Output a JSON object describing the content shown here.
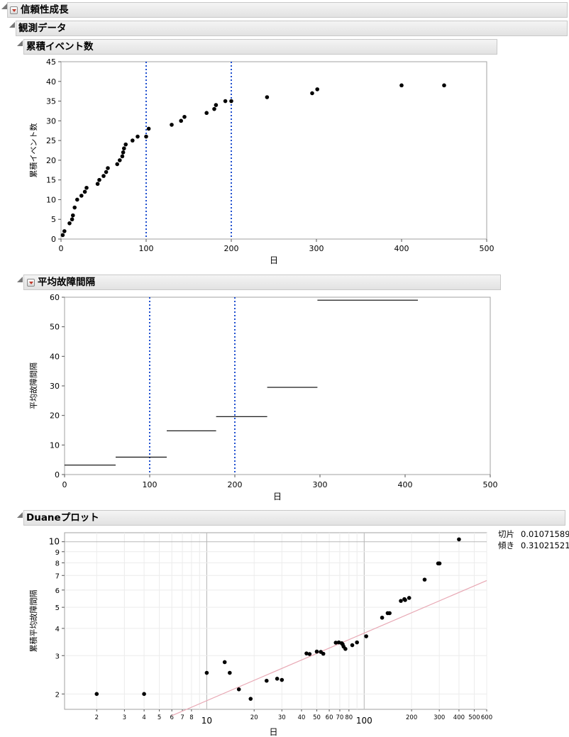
{
  "report": {
    "title": "信頼性成長",
    "observed": {
      "title": "観測データ"
    }
  },
  "panels": {
    "cumulative": {
      "title": "累積イベント数"
    },
    "mtbf": {
      "title": "平均故障間隔"
    },
    "duane": {
      "title": "Duaneプロット",
      "params": [
        {
          "label": "切片",
          "value": "0.01071589"
        },
        {
          "label": "傾き",
          "value": "0.31021521"
        }
      ]
    }
  },
  "colors": {
    "point": "#000000",
    "phase_line": "#1f4fcf",
    "fit_line": "#e8a8b4",
    "grid": "#d8d8d8"
  },
  "chart_data": [
    {
      "type": "scatter",
      "title": "累積イベント数",
      "xlabel": "日",
      "ylabel": "累積イベント数",
      "xlim": [
        0,
        500
      ],
      "ylim": [
        0,
        45
      ],
      "xticks": [
        0,
        100,
        200,
        300,
        400,
        500
      ],
      "yticks": [
        0,
        5,
        10,
        15,
        20,
        25,
        30,
        35,
        40,
        45
      ],
      "phase_lines": [
        100,
        200
      ],
      "points": [
        [
          2,
          1
        ],
        [
          4,
          2
        ],
        [
          10,
          4
        ],
        [
          13,
          5
        ],
        [
          14,
          6
        ],
        [
          16,
          8
        ],
        [
          19,
          10
        ],
        [
          24,
          11
        ],
        [
          28,
          12
        ],
        [
          30,
          13
        ],
        [
          43,
          14
        ],
        [
          45,
          15
        ],
        [
          50,
          16
        ],
        [
          53,
          17
        ],
        [
          55,
          18
        ],
        [
          66,
          19
        ],
        [
          69,
          20
        ],
        [
          72,
          21
        ],
        [
          73,
          22
        ],
        [
          74,
          23
        ],
        [
          76,
          24
        ],
        [
          84,
          25
        ],
        [
          90,
          26
        ],
        [
          100,
          26
        ],
        [
          103,
          28
        ],
        [
          130,
          29
        ],
        [
          141,
          30
        ],
        [
          145,
          31
        ],
        [
          171,
          32
        ],
        [
          180,
          33
        ],
        [
          182,
          34
        ],
        [
          193,
          35
        ],
        [
          200,
          35
        ],
        [
          242,
          36
        ],
        [
          295,
          37
        ],
        [
          301,
          38
        ],
        [
          400,
          39
        ],
        [
          450,
          39
        ]
      ]
    },
    {
      "type": "line",
      "title": "平均故障間隔",
      "xlabel": "日",
      "ylabel": "平均故障間隔",
      "xlim": [
        0,
        500
      ],
      "ylim": [
        0,
        60
      ],
      "xticks": [
        0,
        100,
        200,
        300,
        400,
        500
      ],
      "yticks": [
        0,
        10,
        20,
        30,
        40,
        50,
        60
      ],
      "phase_lines": [
        100,
        200
      ],
      "segments": [
        {
          "x0": 0,
          "x1": 60,
          "y": 3.2
        },
        {
          "x0": 60,
          "x1": 120,
          "y": 5.9
        },
        {
          "x0": 120,
          "x1": 178,
          "y": 14.8
        },
        {
          "x0": 178,
          "x1": 238,
          "y": 19.6
        },
        {
          "x0": 238,
          "x1": 297,
          "y": 29.5
        },
        {
          "x0": 297,
          "x1": 415,
          "y": 59
        }
      ]
    },
    {
      "type": "scatter",
      "title": "Duaneプロット",
      "xlabel": "日",
      "ylabel": "累積平均故障間隔",
      "xscale": "log",
      "yscale": "log",
      "xlim": [
        1.25,
        600
      ],
      "ylim": [
        1.7,
        11
      ],
      "xticks_labeled": [
        2,
        3,
        4,
        5,
        6,
        7,
        8,
        20,
        30,
        40,
        50,
        60,
        70,
        80,
        200,
        300,
        400,
        500,
        600
      ],
      "xticks_major": [
        10,
        100
      ],
      "yticks": [
        2,
        3,
        4,
        5,
        6,
        7,
        8,
        9,
        10
      ],
      "fit": {
        "intercept": 0.01071589,
        "slope": 0.31021521
      },
      "points": [
        [
          2,
          2.0
        ],
        [
          4,
          2.0
        ],
        [
          10,
          2.5
        ],
        [
          13,
          2.8
        ],
        [
          14,
          2.5
        ],
        [
          16,
          2.1
        ],
        [
          19,
          1.9
        ],
        [
          24,
          2.3
        ],
        [
          28,
          2.35
        ],
        [
          30,
          2.32
        ],
        [
          43,
          3.07
        ],
        [
          45,
          3.05
        ],
        [
          50,
          3.13
        ],
        [
          53,
          3.12
        ],
        [
          55,
          3.06
        ],
        [
          66,
          3.44
        ],
        [
          69,
          3.45
        ],
        [
          72,
          3.42
        ],
        [
          73,
          3.38
        ],
        [
          74,
          3.3
        ],
        [
          76,
          3.22
        ],
        [
          84,
          3.35
        ],
        [
          90,
          3.45
        ],
        [
          103,
          3.68
        ],
        [
          130,
          4.48
        ],
        [
          141,
          4.7
        ],
        [
          145,
          4.7
        ],
        [
          171,
          5.35
        ],
        [
          180,
          5.45
        ],
        [
          182,
          5.4
        ],
        [
          193,
          5.52
        ],
        [
          242,
          6.7
        ],
        [
          295,
          7.95
        ],
        [
          301,
          7.95
        ],
        [
          400,
          10.25
        ]
      ]
    }
  ]
}
